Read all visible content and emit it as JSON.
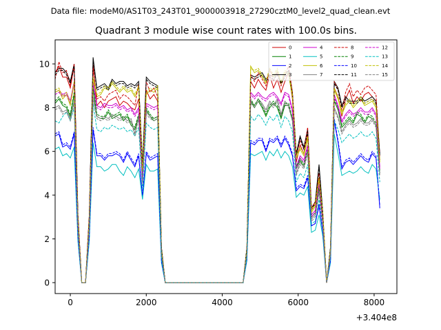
{
  "suptitle": "Data file: modeM0/AS1T03_243T01_9000003918_27290cztM0_level2_quad_clean.evt",
  "chart_data": {
    "type": "line",
    "title": "Quadrant 3 module wise count rates with 100.0s bins.",
    "xlabel": "",
    "ylabel": "",
    "x_offset_label": "+3.404e8",
    "xlim": [
      -400,
      8600
    ],
    "ylim": [
      -0.5,
      11.1
    ],
    "xticks": [
      0,
      2000,
      4000,
      6000,
      8000
    ],
    "xtick_labels": [
      "0",
      "2000",
      "4000",
      "6000",
      "8000"
    ],
    "yticks": [
      0,
      2,
      4,
      6,
      8,
      10
    ],
    "ytick_labels": [
      "0",
      "2",
      "4",
      "6",
      "8",
      "10"
    ],
    "grid": false,
    "legend_location": "top-right",
    "legend_columns": 4,
    "x": [
      -400,
      -300,
      -200,
      -100,
      0,
      100,
      200,
      300,
      400,
      500,
      600,
      700,
      800,
      900,
      1000,
      1100,
      1200,
      1300,
      1400,
      1500,
      1600,
      1700,
      1800,
      1900,
      2000,
      2100,
      2200,
      2300,
      2400,
      2500,
      4550,
      4650,
      4750,
      4850,
      4950,
      5050,
      5150,
      5250,
      5350,
      5450,
      5550,
      5650,
      5750,
      5850,
      5950,
      6050,
      6150,
      6250,
      6350,
      6450,
      6550,
      6650,
      6750,
      6850,
      6950,
      7050,
      7150,
      7250,
      7350,
      7450,
      7550,
      7650,
      7750,
      7850,
      7950,
      8050,
      8150
    ],
    "series": [
      {
        "name": "0",
        "color": "#cc0000",
        "dash": "solid",
        "values": [
          9.6,
          9.9,
          9.4,
          9.4,
          8.9,
          9.9,
          3.0,
          0.0,
          0.0,
          3.0,
          10.0,
          8.1,
          8.3,
          8.0,
          8.3,
          8.4,
          8.5,
          8.1,
          8.3,
          8.2,
          8.0,
          7.9,
          8.4,
          5.0,
          8.8,
          8.4,
          8.6,
          8.3,
          1.5,
          0.0,
          0.0,
          1.5,
          9.2,
          8.9,
          9.3,
          9.0,
          8.8,
          9.5,
          8.9,
          9.3,
          8.7,
          9.2,
          9.6,
          8.4,
          5.5,
          6.3,
          5.9,
          6.8,
          3.3,
          3.6,
          4.8,
          3.0,
          0.0,
          1.5,
          8.9,
          8.5,
          7.6,
          8.4,
          8.8,
          8.2,
          8.5,
          8.3,
          8.6,
          8.7,
          8.5,
          8.3,
          5.6
        ]
      },
      {
        "name": "1",
        "color": "#008000",
        "dash": "solid",
        "values": [
          8.2,
          8.4,
          8.1,
          8.0,
          7.6,
          8.6,
          2.6,
          0.0,
          0.0,
          2.6,
          8.9,
          7.6,
          7.5,
          7.5,
          7.8,
          7.5,
          7.6,
          7.7,
          7.4,
          7.6,
          7.2,
          7.0,
          7.6,
          4.6,
          7.9,
          7.6,
          7.4,
          7.5,
          1.3,
          0.0,
          0.0,
          1.4,
          8.3,
          8.0,
          8.3,
          8.0,
          7.6,
          8.0,
          8.2,
          8.0,
          7.5,
          8.1,
          8.1,
          7.4,
          5.2,
          5.6,
          5.3,
          6.0,
          3.0,
          3.2,
          4.3,
          2.8,
          0.0,
          1.3,
          8.3,
          7.9,
          7.1,
          7.3,
          7.5,
          7.3,
          7.7,
          7.6,
          7.3,
          7.6,
          7.5,
          7.2,
          5.0
        ]
      },
      {
        "name": "2",
        "color": "#0000ff",
        "dash": "solid",
        "values": [
          6.7,
          6.8,
          6.2,
          6.3,
          6.1,
          6.8,
          2.1,
          0.0,
          0.0,
          2.1,
          7.0,
          5.8,
          5.8,
          5.6,
          5.8,
          5.8,
          5.9,
          5.8,
          5.5,
          5.9,
          5.6,
          5.3,
          5.8,
          3.9,
          5.9,
          5.6,
          5.7,
          5.8,
          1.0,
          0.0,
          0.0,
          1.1,
          6.4,
          6.3,
          6.5,
          6.5,
          6.0,
          6.5,
          6.4,
          6.6,
          6.2,
          6.6,
          6.3,
          5.8,
          4.2,
          4.4,
          4.3,
          4.8,
          2.6,
          2.7,
          3.5,
          2.3,
          0.0,
          1.0,
          7.4,
          6.4,
          5.2,
          5.5,
          5.6,
          5.4,
          5.6,
          5.8,
          5.6,
          5.5,
          5.9,
          5.7,
          3.4
        ]
      },
      {
        "name": "3",
        "color": "#000000",
        "dash": "solid",
        "values": [
          9.6,
          9.8,
          9.8,
          9.6,
          9.2,
          10.0,
          3.1,
          0.0,
          0.0,
          3.1,
          10.3,
          8.9,
          9.0,
          9.1,
          8.9,
          9.3,
          9.1,
          9.2,
          9.2,
          9.0,
          9.1,
          9.0,
          9.2,
          5.4,
          9.4,
          9.2,
          9.1,
          9.0,
          1.6,
          0.0,
          0.0,
          1.6,
          9.5,
          9.4,
          9.5,
          9.6,
          9.3,
          9.5,
          9.4,
          9.6,
          9.2,
          9.5,
          9.7,
          8.7,
          5.9,
          6.7,
          6.2,
          7.0,
          3.4,
          3.7,
          5.4,
          3.2,
          0.0,
          1.6,
          9.2,
          8.9,
          8.1,
          8.5,
          8.3,
          8.3,
          8.3,
          8.5,
          8.3,
          8.4,
          8.5,
          8.3,
          5.9
        ]
      },
      {
        "name": "4",
        "color": "#cc00cc",
        "dash": "solid",
        "values": [
          8.7,
          8.8,
          8.6,
          8.7,
          8.3,
          9.2,
          2.8,
          0.0,
          0.0,
          2.8,
          9.2,
          8.1,
          8.0,
          8.2,
          8.1,
          8.1,
          8.2,
          8.0,
          8.1,
          7.9,
          8.0,
          7.7,
          8.0,
          4.8,
          8.2,
          8.1,
          8.0,
          8.1,
          1.4,
          0.0,
          0.0,
          1.4,
          8.7,
          8.5,
          8.7,
          8.5,
          8.4,
          8.6,
          8.7,
          8.5,
          8.2,
          8.7,
          8.6,
          7.9,
          5.3,
          5.8,
          5.6,
          6.3,
          3.1,
          3.3,
          4.6,
          2.9,
          0.0,
          1.4,
          8.6,
          8.1,
          7.4,
          7.7,
          7.9,
          7.7,
          7.8,
          8.0,
          7.8,
          7.8,
          8.0,
          7.7,
          5.3
        ]
      },
      {
        "name": "5",
        "color": "#00bfbf",
        "dash": "solid",
        "values": [
          6.1,
          6.2,
          5.8,
          5.9,
          5.7,
          6.2,
          1.9,
          0.0,
          0.0,
          1.9,
          6.4,
          5.3,
          5.3,
          5.1,
          5.2,
          5.4,
          5.4,
          5.1,
          4.9,
          5.3,
          5.1,
          4.8,
          5.2,
          3.8,
          5.4,
          5.1,
          5.1,
          5.2,
          0.9,
          0.0,
          0.0,
          1.0,
          5.9,
          5.8,
          5.9,
          6.0,
          5.6,
          6.0,
          5.8,
          6.1,
          5.7,
          6.0,
          5.8,
          5.3,
          3.9,
          4.1,
          4.0,
          4.4,
          2.3,
          2.4,
          3.1,
          2.1,
          0.0,
          0.9,
          6.8,
          5.9,
          4.9,
          5.0,
          5.1,
          5.0,
          5.1,
          5.3,
          5.1,
          5.0,
          5.4,
          5.2,
          3.8
        ]
      },
      {
        "name": "6",
        "color": "#bfbf00",
        "dash": "solid",
        "values": [
          8.7,
          8.8,
          8.4,
          8.6,
          8.1,
          9.1,
          2.8,
          0.0,
          0.0,
          2.8,
          9.3,
          8.5,
          8.6,
          8.9,
          8.8,
          9.1,
          8.9,
          8.7,
          8.9,
          8.7,
          8.8,
          8.5,
          8.9,
          5.1,
          8.6,
          8.8,
          8.7,
          8.9,
          1.5,
          0.0,
          0.0,
          1.5,
          9.9,
          9.6,
          9.7,
          9.4,
          9.1,
          9.7,
          9.4,
          9.7,
          9.1,
          9.6,
          9.5,
          8.5,
          5.7,
          6.1,
          5.8,
          6.6,
          3.2,
          3.5,
          4.7,
          3.1,
          0.0,
          1.5,
          8.8,
          8.4,
          7.7,
          8.1,
          8.3,
          8.0,
          8.2,
          8.4,
          8.1,
          8.2,
          8.3,
          8.0,
          5.5
        ]
      },
      {
        "name": "7",
        "color": "#808080",
        "dash": "solid",
        "values": [
          8.0,
          8.1,
          7.8,
          7.9,
          7.5,
          8.3,
          2.6,
          0.0,
          0.0,
          2.6,
          8.5,
          7.6,
          7.5,
          7.6,
          7.5,
          7.7,
          7.6,
          7.5,
          7.6,
          7.4,
          7.5,
          6.8,
          7.6,
          4.6,
          7.8,
          7.6,
          7.5,
          7.6,
          1.3,
          0.0,
          0.0,
          1.3,
          8.3,
          8.1,
          8.4,
          8.2,
          7.9,
          8.3,
          8.1,
          8.4,
          7.7,
          8.3,
          8.1,
          7.5,
          5.0,
          5.5,
          5.3,
          6.0,
          2.9,
          3.1,
          4.2,
          2.7,
          0.0,
          1.3,
          8.0,
          7.6,
          6.9,
          7.2,
          7.4,
          7.2,
          7.3,
          7.5,
          7.3,
          7.3,
          7.5,
          7.2,
          5.0
        ]
      },
      {
        "name": "8",
        "color": "#cc0000",
        "dash": "dashed",
        "values": [
          9.3,
          10.1,
          9.6,
          9.7,
          9.0,
          10.0,
          3.1,
          0.0,
          0.0,
          3.1,
          9.8,
          8.4,
          8.5,
          8.3,
          8.6,
          8.7,
          8.8,
          8.4,
          8.6,
          8.5,
          8.3,
          8.1,
          9.1,
          5.2,
          9.2,
          8.7,
          8.9,
          8.5,
          1.5,
          0.0,
          0.0,
          1.5,
          9.5,
          9.2,
          9.6,
          9.3,
          9.0,
          9.8,
          9.2,
          9.6,
          9.0,
          9.5,
          9.9,
          8.7,
          5.8,
          6.5,
          6.1,
          7.1,
          3.4,
          3.7,
          5.0,
          3.1,
          0.0,
          1.5,
          9.2,
          8.8,
          7.9,
          8.7,
          9.1,
          8.5,
          8.8,
          8.6,
          8.9,
          9.0,
          8.8,
          8.6,
          5.8
        ]
      },
      {
        "name": "9",
        "color": "#008000",
        "dash": "dashed",
        "values": [
          8.3,
          8.5,
          8.2,
          8.1,
          7.7,
          8.7,
          2.7,
          0.0,
          0.0,
          2.7,
          9.0,
          7.7,
          7.6,
          7.6,
          7.9,
          7.6,
          7.7,
          7.8,
          7.5,
          7.7,
          7.3,
          7.1,
          7.7,
          4.7,
          8.0,
          7.7,
          7.5,
          7.6,
          1.3,
          0.0,
          0.0,
          1.4,
          8.4,
          8.1,
          8.4,
          8.1,
          7.7,
          8.1,
          8.3,
          8.1,
          7.6,
          8.2,
          8.2,
          7.5,
          5.3,
          5.7,
          5.4,
          6.1,
          3.0,
          3.2,
          4.4,
          2.8,
          0.0,
          1.3,
          8.4,
          8.0,
          7.2,
          7.4,
          7.6,
          7.4,
          7.8,
          7.7,
          7.4,
          7.7,
          7.6,
          7.3,
          5.1
        ]
      },
      {
        "name": "10",
        "color": "#0000ff",
        "dash": "dashed",
        "values": [
          6.8,
          6.9,
          6.3,
          6.4,
          6.2,
          6.9,
          2.1,
          0.0,
          0.0,
          2.1,
          7.1,
          5.9,
          5.9,
          5.7,
          5.9,
          5.9,
          6.0,
          5.9,
          5.6,
          6.0,
          5.7,
          5.4,
          5.9,
          4.0,
          6.0,
          5.7,
          5.8,
          5.9,
          1.0,
          0.0,
          0.0,
          1.1,
          6.5,
          6.4,
          6.6,
          6.6,
          6.1,
          6.6,
          6.5,
          6.7,
          6.3,
          6.7,
          6.4,
          5.9,
          4.3,
          4.5,
          4.4,
          4.9,
          2.6,
          2.7,
          3.6,
          2.3,
          0.0,
          1.0,
          7.5,
          6.5,
          5.3,
          5.6,
          5.7,
          5.5,
          5.7,
          5.9,
          5.7,
          5.6,
          6.0,
          5.8,
          3.5
        ]
      },
      {
        "name": "11",
        "color": "#000000",
        "dash": "dashed",
        "values": [
          9.5,
          9.7,
          9.7,
          9.5,
          9.1,
          9.9,
          3.0,
          0.0,
          0.0,
          3.0,
          10.2,
          8.8,
          8.9,
          9.0,
          8.8,
          9.2,
          9.0,
          9.1,
          9.1,
          8.9,
          9.0,
          8.9,
          9.1,
          5.3,
          9.3,
          9.1,
          9.0,
          8.9,
          1.6,
          0.0,
          0.0,
          1.6,
          9.4,
          9.3,
          9.4,
          9.5,
          9.2,
          9.4,
          9.3,
          9.5,
          9.1,
          9.4,
          9.6,
          8.6,
          5.8,
          6.6,
          6.1,
          6.9,
          3.4,
          3.6,
          5.3,
          3.1,
          0.0,
          1.6,
          9.1,
          8.8,
          8.0,
          8.4,
          8.2,
          8.2,
          8.2,
          8.4,
          8.2,
          8.3,
          8.4,
          8.2,
          5.8
        ]
      },
      {
        "name": "12",
        "color": "#cc00cc",
        "dash": "dashed",
        "values": [
          8.6,
          8.7,
          8.5,
          8.6,
          8.2,
          9.1,
          2.8,
          0.0,
          0.0,
          2.8,
          9.1,
          8.0,
          7.9,
          8.1,
          8.0,
          8.0,
          8.1,
          7.9,
          8.0,
          7.8,
          7.9,
          7.6,
          7.9,
          4.7,
          8.1,
          8.0,
          7.9,
          8.0,
          1.4,
          0.0,
          0.0,
          1.4,
          8.6,
          8.4,
          8.6,
          8.4,
          8.3,
          8.5,
          8.6,
          8.4,
          8.1,
          8.6,
          8.5,
          7.8,
          5.2,
          5.7,
          5.5,
          6.2,
          3.0,
          3.2,
          4.5,
          2.8,
          0.0,
          1.4,
          8.5,
          8.0,
          7.3,
          7.6,
          7.8,
          7.6,
          7.7,
          7.9,
          7.7,
          7.7,
          7.9,
          7.6,
          5.2
        ]
      },
      {
        "name": "13",
        "color": "#00bfbf",
        "dash": "dashed",
        "values": [
          7.4,
          7.3,
          7.6,
          7.8,
          7.4,
          8.0,
          2.4,
          0.0,
          0.0,
          2.4,
          8.2,
          7.0,
          6.9,
          7.1,
          7.0,
          7.2,
          7.1,
          7.0,
          7.1,
          6.9,
          7.0,
          6.7,
          7.1,
          4.3,
          7.3,
          7.1,
          7.0,
          7.1,
          1.2,
          0.0,
          0.0,
          1.2,
          7.6,
          7.4,
          7.7,
          7.5,
          7.2,
          7.6,
          7.4,
          7.7,
          7.1,
          7.6,
          7.4,
          6.9,
          4.6,
          5.0,
          4.8,
          5.4,
          2.7,
          2.8,
          3.8,
          2.5,
          0.0,
          1.2,
          7.4,
          7.0,
          6.4,
          6.6,
          6.8,
          6.6,
          6.7,
          6.9,
          6.7,
          6.7,
          6.9,
          6.6,
          4.6
        ]
      },
      {
        "name": "14",
        "color": "#bfbf00",
        "dash": "dashed",
        "values": [
          8.8,
          8.9,
          8.5,
          8.7,
          8.2,
          9.2,
          2.9,
          0.0,
          0.0,
          2.9,
          9.4,
          8.6,
          8.7,
          9.0,
          8.9,
          9.2,
          9.0,
          8.8,
          9.0,
          8.8,
          8.9,
          8.6,
          9.0,
          5.2,
          8.7,
          8.9,
          8.8,
          9.0,
          1.5,
          0.0,
          0.0,
          1.5,
          9.8,
          9.7,
          9.8,
          9.5,
          9.2,
          9.8,
          9.5,
          9.8,
          9.2,
          9.7,
          9.6,
          8.6,
          5.8,
          6.2,
          5.9,
          6.7,
          3.3,
          3.6,
          4.8,
          3.2,
          0.0,
          1.5,
          8.9,
          8.5,
          7.8,
          8.2,
          8.4,
          8.1,
          8.3,
          8.5,
          8.2,
          8.3,
          8.4,
          8.1,
          5.6
        ]
      },
      {
        "name": "15",
        "color": "#808080",
        "dash": "dashed",
        "values": [
          7.9,
          8.0,
          7.7,
          7.8,
          7.4,
          8.2,
          2.5,
          0.0,
          0.0,
          2.5,
          8.4,
          7.5,
          7.4,
          7.5,
          7.4,
          7.6,
          7.5,
          7.4,
          7.5,
          7.3,
          7.4,
          6.7,
          7.5,
          4.5,
          7.7,
          7.5,
          7.4,
          7.5,
          1.3,
          0.0,
          0.0,
          1.3,
          8.2,
          8.0,
          8.3,
          8.1,
          7.8,
          8.2,
          8.0,
          8.3,
          7.6,
          8.2,
          8.0,
          7.4,
          4.9,
          5.4,
          5.2,
          5.9,
          2.8,
          3.0,
          4.1,
          2.6,
          0.0,
          1.3,
          7.9,
          7.5,
          6.8,
          7.1,
          7.3,
          7.1,
          7.2,
          7.4,
          7.2,
          7.2,
          7.4,
          7.1,
          4.9
        ]
      }
    ]
  }
}
